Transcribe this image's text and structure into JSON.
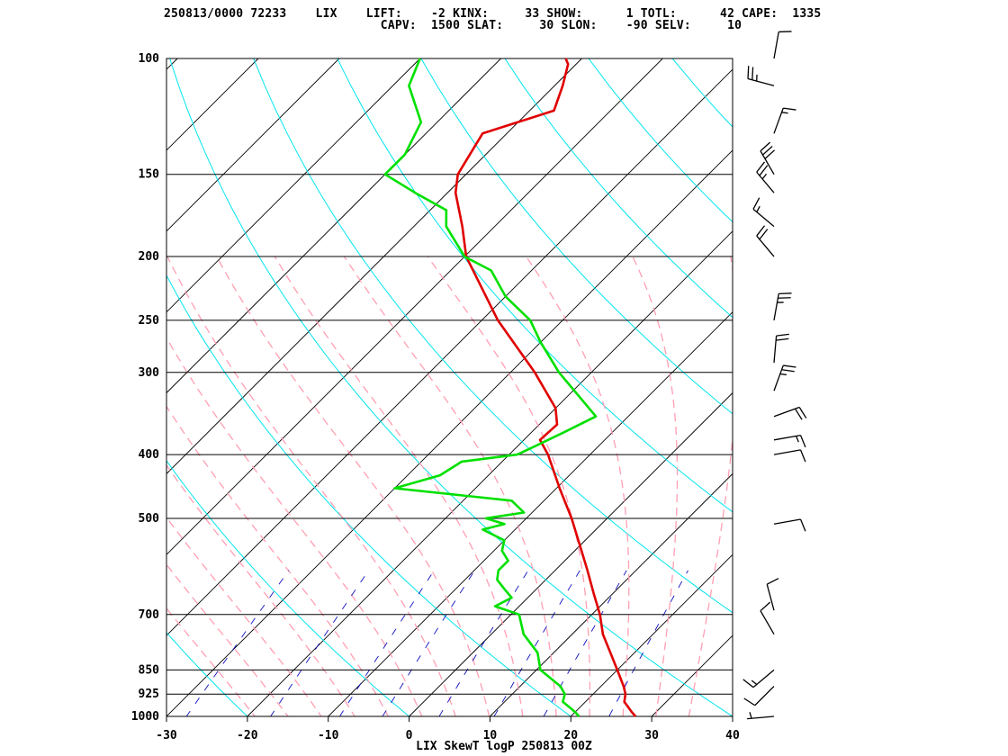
{
  "header": {
    "line1": "250813/0000 72233    LIX    LIFT:    -2 KINX:     33 SHOW:      1 TOTL:      42 CAPE:  1335",
    "line2": "                              CAPV:  1500 SLAT:     30 SLON:    -90 SELV:     10"
  },
  "footer": {
    "title": "LIX SkewT logP 250813 00Z"
  },
  "colors": {
    "isotherm": "#000000",
    "isobar": "#000000",
    "dry_adiabat": "#00e5ee",
    "moist_adiabat": "#ff9fb2",
    "mixing_ratio": "#1010c0",
    "temperature": "#e00000",
    "dewpoint": "#00e000",
    "wind_barb": "#000000"
  },
  "chart_data": {
    "type": "line",
    "title": "LIX SkewT logP 250813 00Z",
    "station": "72233 LIX",
    "indices": {
      "LIFT": -2,
      "KINX": 33,
      "SHOW": 1,
      "TOTL": 42,
      "CAPE": 1335,
      "CAPV": 1500,
      "SLAT": 30,
      "SLON": -90,
      "SELV": 10
    },
    "xlabel": "",
    "ylabel": "",
    "x_ticks": [
      "-30",
      "-20",
      "-10",
      "0",
      "10",
      "20",
      "30",
      "40"
    ],
    "xlim": [
      -30,
      40
    ],
    "y_ticks": [
      "100",
      "150",
      "200",
      "250",
      "300",
      "400",
      "500",
      "700",
      "850",
      "925",
      "1000"
    ],
    "ylim": [
      1000,
      100
    ],
    "y_scale": "log",
    "grid": true,
    "series": [
      {
        "name": "temperature",
        "points": [
          [
            1000,
            28.0
          ],
          [
            985,
            27.0
          ],
          [
            950,
            24.8
          ],
          [
            925,
            24.0
          ],
          [
            900,
            22.8
          ],
          [
            850,
            20.0
          ],
          [
            800,
            17.0
          ],
          [
            750,
            13.8
          ],
          [
            700,
            11.0
          ],
          [
            650,
            7.6
          ],
          [
            600,
            4.0
          ],
          [
            550,
            0.0
          ],
          [
            500,
            -4.4
          ],
          [
            450,
            -9.6
          ],
          [
            400,
            -15.2
          ],
          [
            380,
            -18.0
          ],
          [
            360,
            -17.8
          ],
          [
            340,
            -20.0
          ],
          [
            300,
            -27.0
          ],
          [
            250,
            -38.0
          ],
          [
            200,
            -49.8
          ],
          [
            180,
            -54.0
          ],
          [
            160,
            -59.0
          ],
          [
            150,
            -61.0
          ],
          [
            130,
            -63.0
          ],
          [
            120,
            -57.0
          ],
          [
            110,
            -59.0
          ],
          [
            102,
            -61.0
          ],
          [
            100,
            -62.0
          ]
        ]
      },
      {
        "name": "dewpoint",
        "points": [
          [
            1000,
            21.0
          ],
          [
            985,
            20.0
          ],
          [
            950,
            17.2
          ],
          [
            925,
            16.5
          ],
          [
            900,
            15.0
          ],
          [
            850,
            10.5
          ],
          [
            800,
            8.0
          ],
          [
            750,
            4.0
          ],
          [
            700,
            1.0
          ],
          [
            680,
            -3.0
          ],
          [
            660,
            -2.0
          ],
          [
            640,
            -4.0
          ],
          [
            620,
            -6.0
          ],
          [
            600,
            -7.0
          ],
          [
            580,
            -7.0
          ],
          [
            560,
            -9.0
          ],
          [
            540,
            -10.0
          ],
          [
            520,
            -14.0
          ],
          [
            510,
            -12.0
          ],
          [
            500,
            -15.0
          ],
          [
            490,
            -11.0
          ],
          [
            470,
            -14.0
          ],
          [
            450,
            -30.0
          ],
          [
            430,
            -26.0
          ],
          [
            410,
            -25.0
          ],
          [
            400,
            -19.0
          ],
          [
            390,
            -18.0
          ],
          [
            370,
            -16.0
          ],
          [
            350,
            -14.0
          ],
          [
            300,
            -24.0
          ],
          [
            270,
            -30.0
          ],
          [
            250,
            -34.0
          ],
          [
            230,
            -40.0
          ],
          [
            210,
            -45.0
          ],
          [
            200,
            -50.0
          ],
          [
            180,
            -56.0
          ],
          [
            170,
            -58.0
          ],
          [
            160,
            -64.0
          ],
          [
            150,
            -70.0
          ],
          [
            140,
            -70.0
          ],
          [
            125,
            -72.0
          ],
          [
            110,
            -78.0
          ],
          [
            100,
            -80.0
          ]
        ]
      }
    ],
    "wind_barbs": [
      {
        "p": 1000,
        "dir": 265,
        "spd": 5
      },
      {
        "p": 900,
        "dir": 225,
        "spd": 10
      },
      {
        "p": 850,
        "dir": 230,
        "spd": 15
      },
      {
        "p": 750,
        "dir": 330,
        "spd": 10
      },
      {
        "p": 690,
        "dir": 345,
        "spd": 10
      },
      {
        "p": 510,
        "dir": 80,
        "spd": 10
      },
      {
        "p": 400,
        "dir": 80,
        "spd": 10
      },
      {
        "p": 380,
        "dir": 80,
        "spd": 15
      },
      {
        "p": 350,
        "dir": 70,
        "spd": 20
      },
      {
        "p": 320,
        "dir": 20,
        "spd": 25
      },
      {
        "p": 290,
        "dir": 5,
        "spd": 20
      },
      {
        "p": 250,
        "dir": 10,
        "spd": 25
      },
      {
        "p": 200,
        "dir": 320,
        "spd": 20
      },
      {
        "p": 180,
        "dir": 310,
        "spd": 15
      },
      {
        "p": 160,
        "dir": 320,
        "spd": 25
      },
      {
        "p": 150,
        "dir": 330,
        "spd": 30
      },
      {
        "p": 130,
        "dir": 20,
        "spd": 15
      },
      {
        "p": 110,
        "dir": 285,
        "spd": 25
      },
      {
        "p": 100,
        "dir": 10,
        "spd": 10
      }
    ]
  }
}
